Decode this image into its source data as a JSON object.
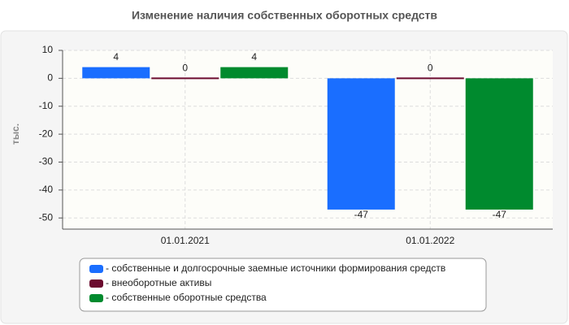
{
  "chart_data": {
    "type": "bar",
    "title": "Изменение наличия собственных оборотных средств",
    "y_label": "тыс.",
    "categories": [
      "01.01.2021",
      "01.01.2022"
    ],
    "series": [
      {
        "name": "- собственные и долгосрочные заемные источники формирования средств",
        "color": "#1a6eff",
        "values": [
          4,
          -47
        ]
      },
      {
        "name": "- внеоборотные активы",
        "color": "#6b0a2e",
        "values": [
          0,
          0
        ]
      },
      {
        "name": "- собственные оборотные средства",
        "color": "#008a2e",
        "values": [
          4,
          -47
        ]
      }
    ],
    "ylim": [
      -54,
      10
    ],
    "yticks": [
      10,
      0,
      -10,
      -20,
      -30,
      -40,
      -50
    ],
    "grid": true
  }
}
